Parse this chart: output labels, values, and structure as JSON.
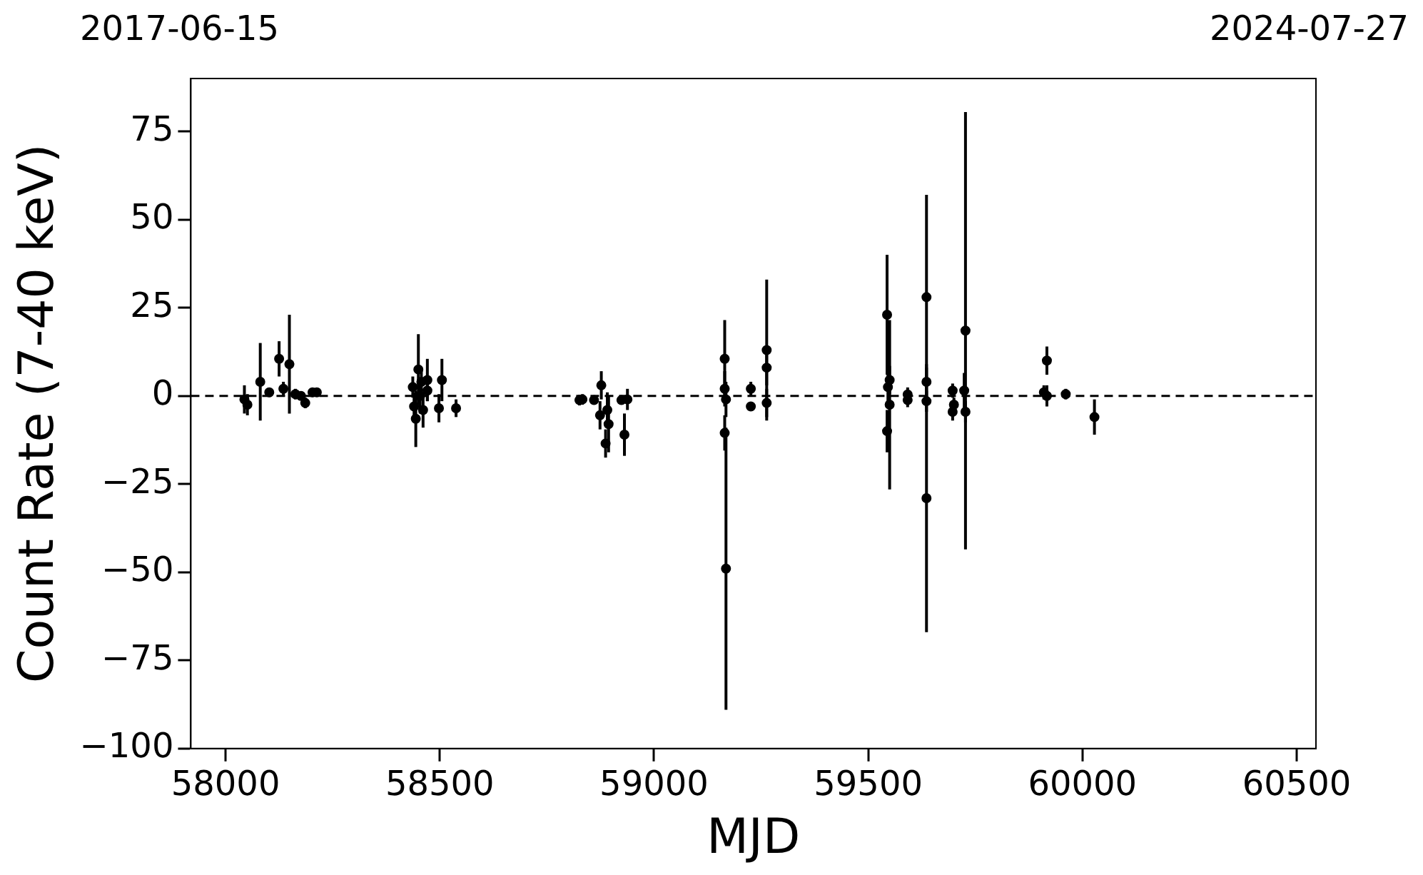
{
  "chart_data": {
    "type": "scatter",
    "xlabel": "MJD",
    "ylabel": "Count Rate (7-40 keV)",
    "xlim": [
      57919,
      60545
    ],
    "xticks": [
      58000,
      58500,
      59000,
      59500,
      60000,
      60500
    ],
    "ylim": [
      -100,
      90
    ],
    "yticks": [
      -100,
      -75,
      -50,
      -25,
      0,
      25,
      50,
      75
    ],
    "annotations": [
      "2017-06-15",
      "2024-07-27"
    ],
    "grid": false,
    "legend": false,
    "marker": "circle",
    "ref_lines": [
      {
        "axis": "y",
        "value": 0,
        "color": "#000000",
        "line_style": "dashed"
      }
    ],
    "series": [
      {
        "color": "#000000",
        "x": [
          58044,
          58051,
          58081,
          58102,
          58125,
          58135,
          58149,
          58163,
          58176,
          58186,
          58203,
          58213,
          58437,
          58440,
          58444,
          58450,
          58454,
          58457,
          58461,
          58471,
          58471,
          58498,
          58505,
          58538,
          58826,
          58833,
          58860,
          58877,
          58874,
          58891,
          58894,
          58887,
          58924,
          58938,
          58931,
          59165,
          59165,
          59168,
          59165,
          59168,
          59226,
          59226,
          59263,
          59263,
          59263,
          59544,
          59550,
          59544,
          59550,
          59546,
          59592,
          59592,
          59636,
          59636,
          59636,
          59636,
          59697,
          59700,
          59697,
          59727,
          59724,
          59727,
          59917,
          59917,
          59910,
          59961,
          60028
        ],
        "values": [
          -1,
          -2.5,
          4,
          1,
          10.5,
          2,
          9,
          0.5,
          0,
          -2,
          1,
          1,
          2.5,
          -3,
          -6.5,
          7.5,
          0,
          4,
          -4,
          4.5,
          1.5,
          -3.5,
          4.5,
          -3.5,
          -1.2,
          -1,
          -1.2,
          3,
          -5.5,
          -4,
          -8,
          -13.5,
          -1.2,
          -1,
          -11,
          10.5,
          2,
          -1,
          -10.5,
          -49,
          2,
          -3,
          13,
          8,
          -2,
          23,
          -2.5,
          -10,
          4.5,
          2.5,
          -1.2,
          0.4,
          28,
          4,
          -1.5,
          -29,
          1.5,
          -2.5,
          -4.5,
          18.5,
          1.5,
          -4.5,
          10,
          0,
          1,
          0.5,
          -6
        ],
        "errors": [
          4,
          3,
          11,
          1,
          5,
          2,
          14,
          1.5,
          1,
          1.5,
          1,
          1,
          3,
          4,
          8,
          10,
          5,
          4,
          5,
          6,
          3,
          4,
          6,
          2.5,
          1.5,
          1.5,
          1,
          4,
          4,
          5,
          8,
          4,
          1,
          3,
          6,
          11,
          5,
          5,
          5,
          40,
          2,
          1,
          20,
          5,
          4,
          17,
          24,
          6,
          4,
          5,
          2,
          2,
          29,
          4,
          3,
          38,
          2,
          2,
          2.5,
          62,
          5,
          3,
          4,
          3,
          2,
          1.5,
          5
        ]
      }
    ]
  }
}
